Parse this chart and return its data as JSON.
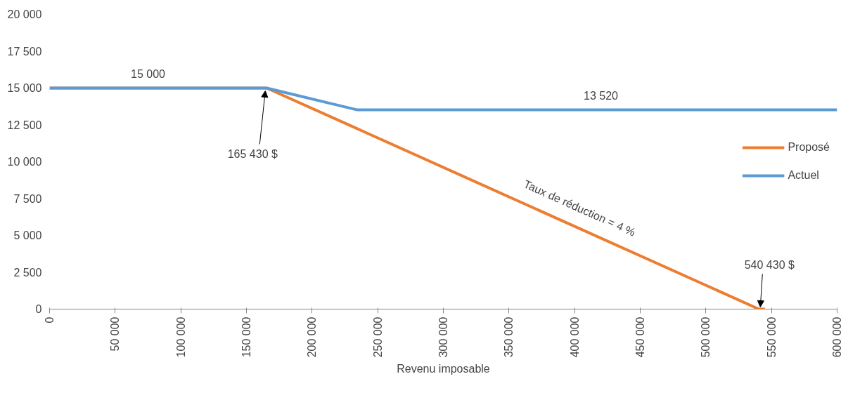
{
  "chart_data": {
    "type": "line",
    "xlabel": "Revenu imposable",
    "xlim": [
      0,
      600000
    ],
    "xticks": [
      {
        "value": 0,
        "label": "0"
      },
      {
        "value": 50000,
        "label": "50 000"
      },
      {
        "value": 100000,
        "label": "100 000"
      },
      {
        "value": 150000,
        "label": "150 000"
      },
      {
        "value": 200000,
        "label": "200 000"
      },
      {
        "value": 250000,
        "label": "250 000"
      },
      {
        "value": 300000,
        "label": "300 000"
      },
      {
        "value": 350000,
        "label": "350 000"
      },
      {
        "value": 400000,
        "label": "400 000"
      },
      {
        "value": 450000,
        "label": "450 000"
      },
      {
        "value": 500000,
        "label": "500 000"
      },
      {
        "value": 550000,
        "label": "550 000"
      },
      {
        "value": 600000,
        "label": "600 000"
      }
    ],
    "ylim": [
      0,
      20000
    ],
    "yticks": [
      {
        "value": 0,
        "label": "0"
      },
      {
        "value": 2500,
        "label": "2 500"
      },
      {
        "value": 5000,
        "label": "5 000"
      },
      {
        "value": 7500,
        "label": "7 500"
      },
      {
        "value": 10000,
        "label": "10 000"
      },
      {
        "value": 12500,
        "label": "12 500"
      },
      {
        "value": 15000,
        "label": "15 000"
      },
      {
        "value": 17500,
        "label": "17 500"
      },
      {
        "value": 20000,
        "label": "20 000"
      }
    ],
    "series": [
      {
        "name": "Proposé",
        "color": "#ed7d31",
        "x": [
          0,
          165430,
          540430,
          545000
        ],
        "values": [
          15000,
          15000,
          0,
          0
        ]
      },
      {
        "name": "Actuel",
        "color": "#5b9bd5",
        "x": [
          0,
          165430,
          234500,
          600000
        ],
        "values": [
          15000,
          15000,
          13520,
          13520
        ]
      }
    ],
    "annotations": [
      {
        "text": "15 000",
        "x": 75000,
        "y": 15000
      },
      {
        "text": "13 520",
        "x": 420000,
        "y": 13520
      },
      {
        "text": "165 430 $",
        "x": 165430,
        "y": 15000
      },
      {
        "text": "540 430 $",
        "x": 540430,
        "y": 0
      },
      {
        "text": "Taux de réduction = 4 %",
        "x": 398000,
        "y": 5700
      }
    ],
    "legend": "right",
    "grid": false,
    "line_style": "solid",
    "marker": "none"
  }
}
